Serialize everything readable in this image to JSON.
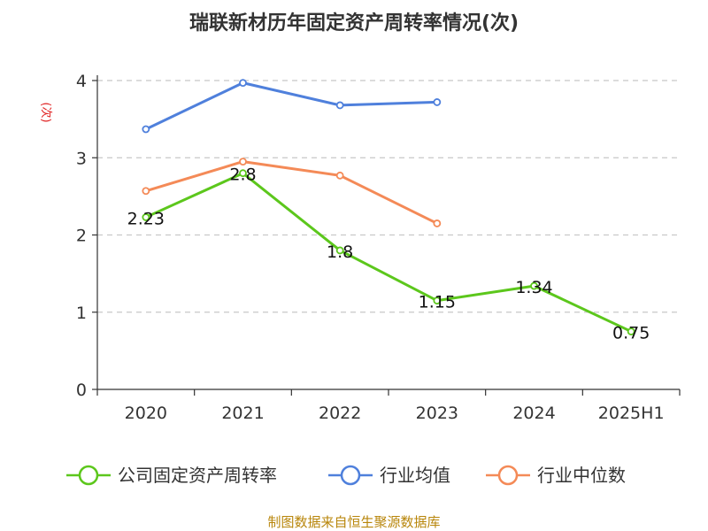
{
  "chart_data": {
    "type": "line",
    "title": "瑞联新材历年固定资产周转率情况(次)",
    "ylabel": "(次)",
    "xlabel": "",
    "ylim": [
      0,
      4
    ],
    "yticks": [
      0,
      1,
      2,
      3,
      4
    ],
    "grid": true,
    "legend_position": "bottom",
    "categories": [
      "2020",
      "2021",
      "2022",
      "2023",
      "2024",
      "2025H1"
    ],
    "series": [
      {
        "name": "公司固定资产周转率",
        "color": "#5cc71c",
        "values": [
          2.23,
          2.8,
          1.8,
          1.15,
          1.34,
          0.75
        ],
        "data_labels": [
          "2.23",
          "2.8",
          "1.8",
          "1.15",
          "1.34",
          "0.75"
        ]
      },
      {
        "name": "行业均值",
        "color": "#4f80dc",
        "values": [
          3.37,
          3.97,
          3.68,
          3.72,
          null,
          null
        ]
      },
      {
        "name": "行业中位数",
        "color": "#f48a57",
        "values": [
          2.57,
          2.95,
          2.77,
          2.15,
          null,
          null
        ]
      }
    ]
  },
  "footer": {
    "source": "制图数据来自恒生聚源数据库"
  },
  "colors": {
    "grid": "#c8c8c8",
    "axis": "#333333",
    "source": "#b8860b"
  }
}
